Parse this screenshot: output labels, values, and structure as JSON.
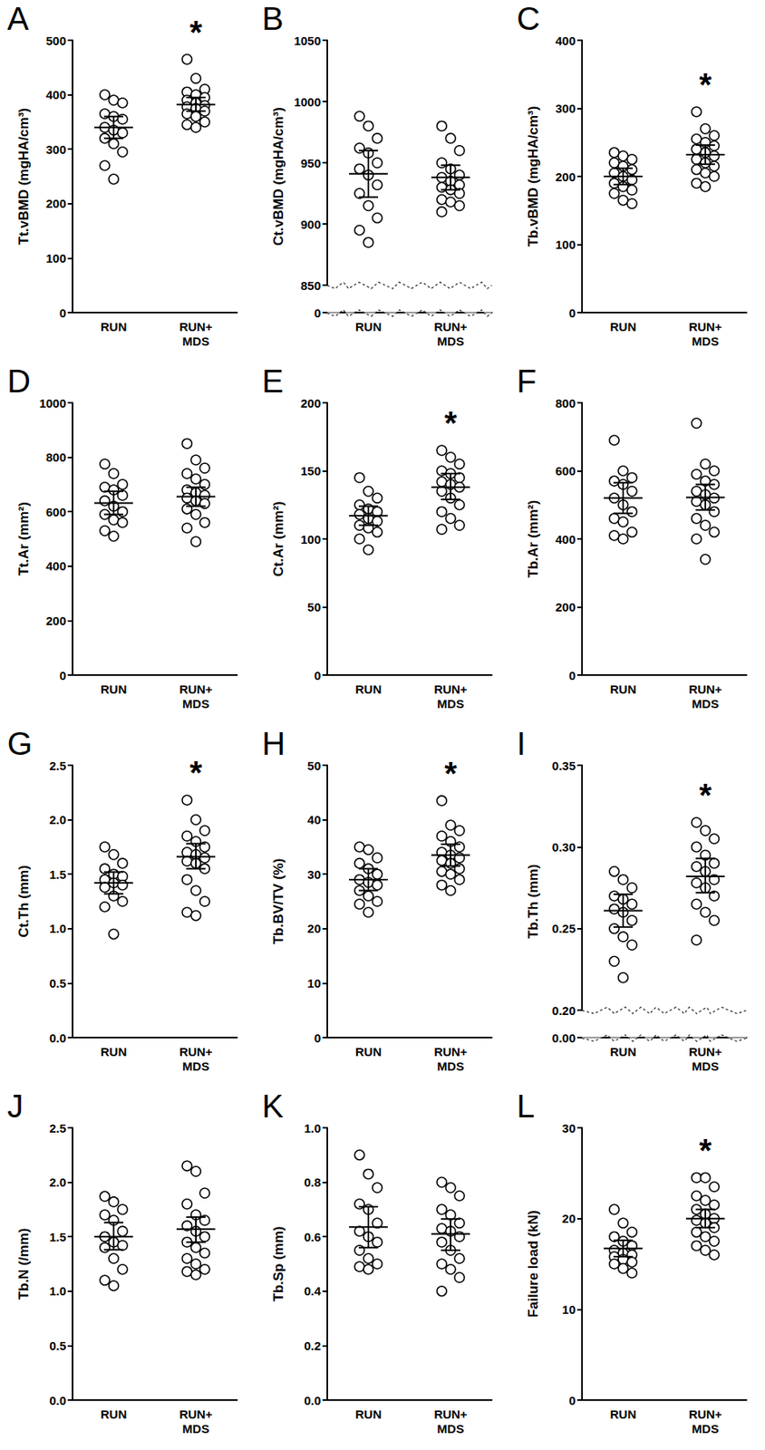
{
  "chart_data": [
    {
      "type": "scatter",
      "title": "A",
      "ylabel": "Tt.vBMD (mgHA/cm³)",
      "categories": [
        "RUN",
        "RUN+\nMDS"
      ],
      "values": [
        [
          400,
          390,
          385,
          365,
          360,
          355,
          340,
          335,
          330,
          320,
          310,
          295,
          270,
          245
        ],
        [
          465,
          430,
          410,
          405,
          400,
          395,
          390,
          385,
          380,
          378,
          375,
          370,
          365,
          360,
          350,
          345,
          340
        ]
      ],
      "means": [
        340,
        382
      ],
      "ci_low": [
        320,
        370
      ],
      "ci_high": [
        360,
        395
      ],
      "ylim": [
        0,
        500
      ],
      "yticks": [
        0,
        100,
        200,
        300,
        400,
        500
      ],
      "annotations": [
        {
          "category": "RUN+\nMDS",
          "text": "*"
        }
      ]
    },
    {
      "type": "scatter",
      "title": "B",
      "ylabel": "Ct.vBMD (mgHA/cm³)",
      "categories": [
        "RUN",
        "RUN+\nMDS"
      ],
      "values": [
        [
          988,
          980,
          970,
          962,
          958,
          950,
          945,
          940,
          932,
          925,
          915,
          905,
          895,
          885
        ],
        [
          980,
          970,
          960,
          950,
          945,
          940,
          938,
          935,
          932,
          930,
          928,
          925,
          920,
          918,
          915,
          910
        ]
      ],
      "means": [
        941,
        938
      ],
      "ci_low": [
        922,
        928
      ],
      "ci_high": [
        960,
        948
      ],
      "ylim": [
        0,
        1050
      ],
      "yticks": [
        0,
        850,
        900,
        950,
        1000,
        1050
      ],
      "ybreak": [
        0,
        850
      ]
    },
    {
      "type": "scatter",
      "title": "C",
      "ylabel": "Tb.vBMD (mgHA/cm³)",
      "categories": [
        "RUN",
        "RUN+\nMDS"
      ],
      "values": [
        [
          235,
          230,
          225,
          220,
          215,
          210,
          205,
          200,
          195,
          190,
          185,
          180,
          175,
          165,
          160
        ],
        [
          295,
          270,
          260,
          255,
          250,
          245,
          240,
          235,
          230,
          225,
          220,
          215,
          210,
          205,
          200,
          190,
          185
        ]
      ],
      "means": [
        200,
        232
      ],
      "ci_low": [
        188,
        218
      ],
      "ci_high": [
        212,
        246
      ],
      "ylim": [
        0,
        400
      ],
      "yticks": [
        0,
        100,
        200,
        300,
        400
      ],
      "annotations": [
        {
          "category": "RUN+\nMDS",
          "text": "*"
        }
      ]
    },
    {
      "type": "scatter",
      "title": "D",
      "ylabel": "Tt.Ar (mm²)",
      "categories": [
        "RUN",
        "RUN+\nMDS"
      ],
      "values": [
        [
          775,
          740,
          700,
          690,
          680,
          660,
          640,
          620,
          600,
          590,
          570,
          560,
          530,
          510
        ],
        [
          850,
          790,
          760,
          740,
          720,
          700,
          680,
          670,
          660,
          650,
          640,
          630,
          610,
          590,
          560,
          540,
          490
        ]
      ],
      "means": [
        632,
        655
      ],
      "ci_low": [
        590,
        620
      ],
      "ci_high": [
        675,
        690
      ],
      "ylim": [
        0,
        1000
      ],
      "yticks": [
        0,
        200,
        400,
        600,
        800,
        1000
      ]
    },
    {
      "type": "scatter",
      "title": "E",
      "ylabel": "Ct.Ar (mm²)",
      "categories": [
        "RUN",
        "RUN+\nMDS"
      ],
      "values": [
        [
          145,
          135,
          130,
          125,
          122,
          120,
          118,
          115,
          113,
          110,
          108,
          105,
          100,
          92
        ],
        [
          165,
          160,
          155,
          150,
          148,
          145,
          142,
          140,
          138,
          135,
          130,
          125,
          120,
          115,
          110,
          107
        ]
      ],
      "means": [
        117,
        138
      ],
      "ci_low": [
        110,
        129
      ],
      "ci_high": [
        124,
        148
      ],
      "ylim": [
        0,
        200
      ],
      "yticks": [
        0,
        50,
        100,
        150,
        200
      ],
      "annotations": [
        {
          "category": "RUN+\nMDS",
          "text": "*"
        }
      ]
    },
    {
      "type": "scatter",
      "title": "F",
      "ylabel": "Tb.Ar (mm²)",
      "categories": [
        "RUN",
        "RUN+\nMDS"
      ],
      "values": [
        [
          690,
          600,
          580,
          570,
          560,
          540,
          520,
          500,
          480,
          460,
          450,
          420,
          410,
          400
        ],
        [
          740,
          620,
          600,
          590,
          570,
          560,
          540,
          530,
          520,
          510,
          500,
          480,
          460,
          440,
          420,
          400,
          340
        ]
      ],
      "means": [
        520,
        522
      ],
      "ci_low": [
        475,
        485
      ],
      "ci_high": [
        565,
        560
      ],
      "ylim": [
        0,
        800
      ],
      "yticks": [
        0,
        200,
        400,
        600,
        800
      ]
    },
    {
      "type": "scatter",
      "title": "G",
      "ylabel": "Ct.Th (mm)",
      "categories": [
        "RUN",
        "RUN+\nMDS"
      ],
      "values": [
        [
          1.75,
          1.68,
          1.6,
          1.55,
          1.5,
          1.48,
          1.45,
          1.42,
          1.4,
          1.38,
          1.3,
          1.25,
          1.2,
          0.95
        ],
        [
          2.18,
          2.0,
          1.9,
          1.85,
          1.8,
          1.75,
          1.7,
          1.68,
          1.65,
          1.62,
          1.6,
          1.55,
          1.45,
          1.35,
          1.25,
          1.15,
          1.12
        ]
      ],
      "means": [
        1.42,
        1.66
      ],
      "ci_low": [
        1.32,
        1.55
      ],
      "ci_high": [
        1.52,
        1.78
      ],
      "ylim": [
        0,
        2.5
      ],
      "yticks": [
        {
          "value": 0,
          "label": "0.0"
        },
        0.5,
        {
          "value": 1,
          "label": "1.0"
        },
        1.5,
        {
          "value": 2,
          "label": "2.0"
        },
        2.5
      ],
      "annotations": [
        {
          "category": "RUN+\nMDS",
          "text": "*"
        }
      ]
    },
    {
      "type": "scatter",
      "title": "H",
      "ylabel": "Tb.BV/TV (%)",
      "categories": [
        "RUN",
        "RUN+\nMDS"
      ],
      "values": [
        [
          35,
          34.5,
          33,
          32,
          31,
          30,
          29,
          28.5,
          28,
          27,
          26,
          25,
          24.5,
          23
        ],
        [
          43.5,
          39,
          38,
          37,
          36,
          35,
          34,
          33.5,
          33,
          32.5,
          32,
          31,
          30.5,
          30,
          29,
          28,
          27
        ]
      ],
      "means": [
        29,
        33.5
      ],
      "ci_low": [
        27,
        31.5
      ],
      "ci_high": [
        31,
        35.5
      ],
      "ylim": [
        0,
        50
      ],
      "yticks": [
        0,
        10,
        20,
        30,
        40,
        50
      ],
      "annotations": [
        {
          "category": "RUN+\nMDS",
          "text": "*"
        }
      ]
    },
    {
      "type": "scatter",
      "title": "I",
      "ylabel": "Tb.Th (mm)",
      "categories": [
        "RUN",
        "RUN+\nMDS"
      ],
      "values": [
        [
          0.285,
          0.28,
          0.275,
          0.27,
          0.268,
          0.265,
          0.262,
          0.26,
          0.255,
          0.25,
          0.245,
          0.24,
          0.23,
          0.22
        ],
        [
          0.315,
          0.31,
          0.305,
          0.3,
          0.295,
          0.29,
          0.288,
          0.285,
          0.28,
          0.278,
          0.275,
          0.27,
          0.265,
          0.26,
          0.255,
          0.243
        ]
      ],
      "means": [
        0.261,
        0.282
      ],
      "ci_low": [
        0.251,
        0.272
      ],
      "ci_high": [
        0.271,
        0.293
      ],
      "ylim": [
        0,
        0.35
      ],
      "yticks": [
        {
          "value": 0,
          "label": "0.00"
        },
        {
          "value": 0.2,
          "label": "0.20"
        },
        0.25,
        {
          "value": 0.3,
          "label": "0.30"
        },
        0.35
      ],
      "ybreak": [
        0,
        0.2
      ],
      "annotations": [
        {
          "category": "RUN+\nMDS",
          "text": "*"
        }
      ]
    },
    {
      "type": "scatter",
      "title": "J",
      "ylabel": "Tb.N (/mm)",
      "categories": [
        "RUN",
        "RUN+\nMDS"
      ],
      "values": [
        [
          1.87,
          1.82,
          1.75,
          1.7,
          1.65,
          1.55,
          1.5,
          1.45,
          1.42,
          1.4,
          1.3,
          1.2,
          1.1,
          1.05
        ],
        [
          2.15,
          2.1,
          1.9,
          1.8,
          1.7,
          1.65,
          1.6,
          1.55,
          1.5,
          1.45,
          1.4,
          1.35,
          1.3,
          1.25,
          1.2,
          1.18,
          1.15
        ]
      ],
      "means": [
        1.5,
        1.57
      ],
      "ci_low": [
        1.38,
        1.45
      ],
      "ci_high": [
        1.63,
        1.68
      ],
      "ylim": [
        0,
        2.5
      ],
      "yticks": [
        {
          "value": 0,
          "label": "0.0"
        },
        0.5,
        {
          "value": 1,
          "label": "1.0"
        },
        1.5,
        {
          "value": 2,
          "label": "2.0"
        },
        2.5
      ]
    },
    {
      "type": "scatter",
      "title": "K",
      "ylabel": "Tb.Sp (mm)",
      "categories": [
        "RUN",
        "RUN+\nMDS"
      ],
      "values": [
        [
          0.9,
          0.83,
          0.78,
          0.72,
          0.7,
          0.65,
          0.62,
          0.6,
          0.58,
          0.55,
          0.52,
          0.5,
          0.49,
          0.48
        ],
        [
          0.8,
          0.78,
          0.75,
          0.7,
          0.68,
          0.65,
          0.63,
          0.62,
          0.6,
          0.58,
          0.55,
          0.52,
          0.5,
          0.48,
          0.45,
          0.4
        ]
      ],
      "means": [
        0.635,
        0.61
      ],
      "ci_low": [
        0.56,
        0.55
      ],
      "ci_high": [
        0.71,
        0.665
      ],
      "ylim": [
        0,
        1
      ],
      "yticks": [
        {
          "value": 0,
          "label": "0.0"
        },
        0.2,
        0.4,
        0.6,
        0.8,
        {
          "value": 1,
          "label": "1.0"
        }
      ]
    },
    {
      "type": "scatter",
      "title": "L",
      "ylabel": "Failure load (kN)",
      "categories": [
        "RUN",
        "RUN+\nMDS"
      ],
      "values": [
        [
          21,
          19.5,
          18.5,
          18,
          17.5,
          17,
          16.5,
          16.2,
          16,
          15.8,
          15.5,
          15.2,
          15,
          14.5,
          14
        ],
        [
          24.5,
          24.5,
          23.5,
          22.5,
          22,
          21.5,
          21,
          20.5,
          20,
          19.8,
          19.5,
          19,
          18.5,
          18,
          17.5,
          17,
          16.5,
          16
        ]
      ],
      "means": [
        16.7,
        20
      ],
      "ci_low": [
        15.8,
        19
      ],
      "ci_high": [
        17.6,
        21
      ],
      "ylim": [
        0,
        30
      ],
      "yticks": [
        0,
        10,
        20,
        30
      ],
      "annotations": [
        {
          "category": "RUN+\nMDS",
          "text": "*"
        }
      ]
    }
  ]
}
